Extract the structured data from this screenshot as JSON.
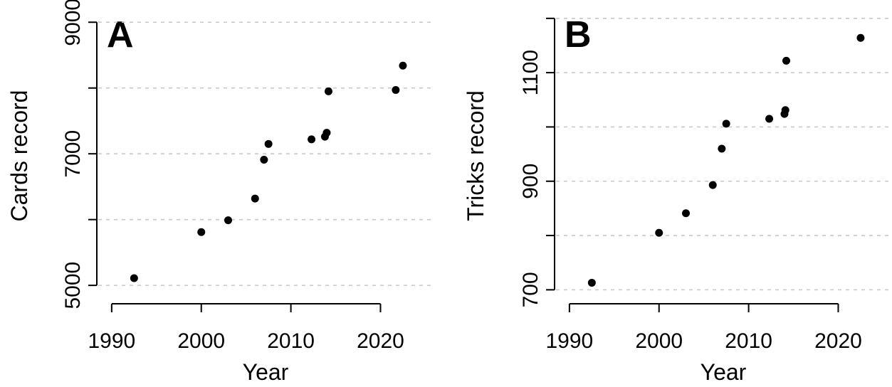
{
  "chart_data": [
    {
      "type": "scatter",
      "panel_label": "A",
      "title": "",
      "xlabel": "Year",
      "ylabel": "Cards record",
      "xlim": [
        1988.5,
        2026
      ],
      "ylim": [
        4850,
        9100
      ],
      "x_ticks": [
        1990,
        2000,
        2010,
        2020
      ],
      "y_ticks": [
        5000,
        6000,
        7000,
        8000,
        9000
      ],
      "y_tick_labels": [
        "5000",
        "",
        "7000",
        "",
        "9000"
      ],
      "grid": "horizontal dashed",
      "series": [
        {
          "x": [
            1992.5,
            2000.0,
            2003.0,
            2006.0,
            2007.0,
            2007.5,
            2012.3,
            2013.8,
            2014.0,
            2014.2,
            2021.7,
            2022.5
          ],
          "y": [
            5110,
            5810,
            5990,
            6320,
            6910,
            7150,
            7220,
            7260,
            7320,
            7950,
            7970,
            8340
          ]
        }
      ]
    },
    {
      "type": "scatter",
      "panel_label": "B",
      "title": "",
      "xlabel": "Year",
      "ylabel": "Tricks record",
      "xlim": [
        1988.5,
        2026
      ],
      "ylim": [
        690,
        1205
      ],
      "x_ticks": [
        1990,
        2000,
        2010,
        2020
      ],
      "y_ticks": [
        700,
        800,
        900,
        1000,
        1100,
        1200
      ],
      "y_tick_labels": [
        "700",
        "",
        "900",
        "",
        "1100",
        ""
      ],
      "grid": "horizontal dashed",
      "series": [
        {
          "x": [
            1992.5,
            2000.0,
            2003.0,
            2006.0,
            2007.0,
            2007.5,
            2012.3,
            2014.0,
            2014.1,
            2014.2,
            2022.5
          ],
          "y": [
            713,
            805,
            841,
            893,
            960,
            1006,
            1015,
            1024,
            1031,
            1122,
            1164
          ]
        }
      ]
    }
  ]
}
